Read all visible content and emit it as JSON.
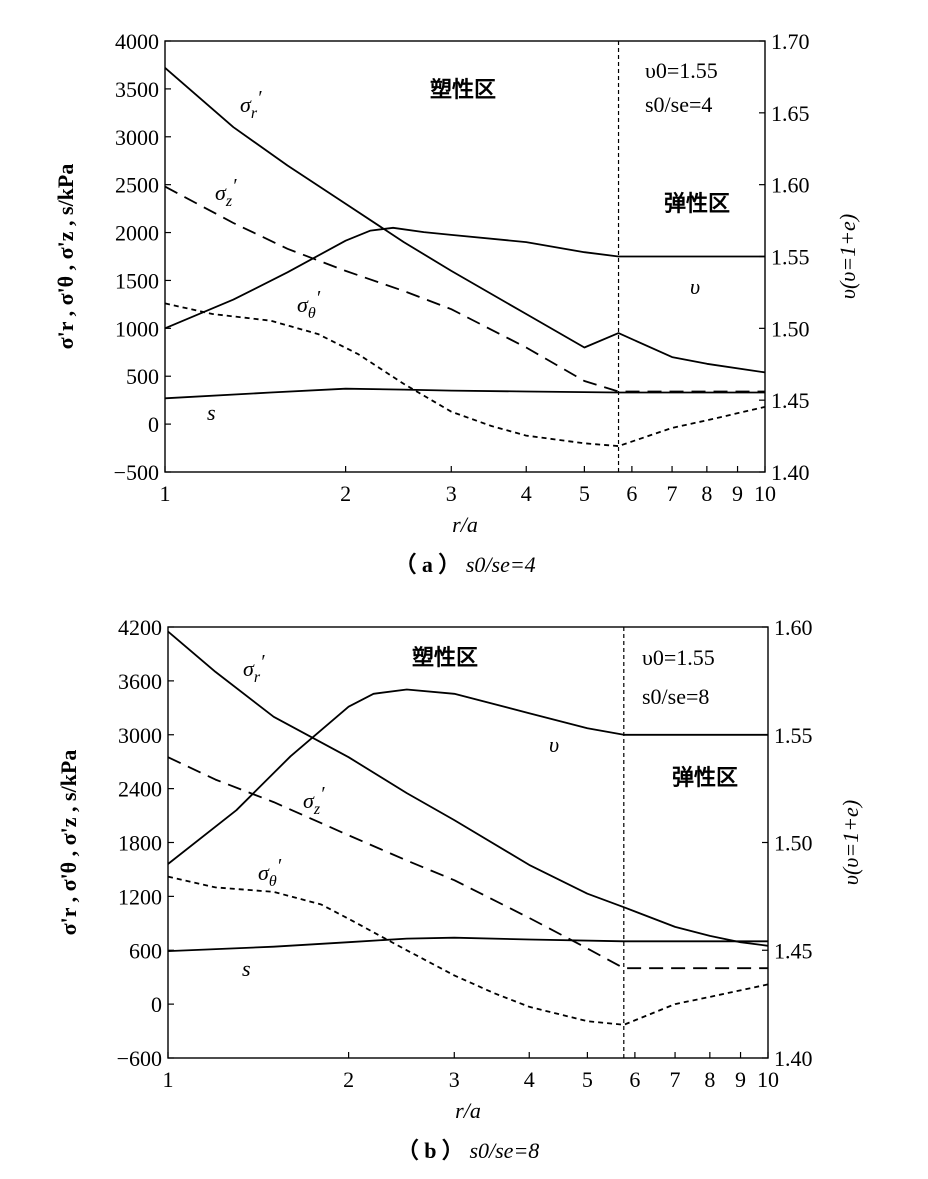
{
  "chart_data": [
    {
      "type": "line",
      "id": "a",
      "caption": {
        "prefix": "（ a ）",
        "ratio": "s0/se=4"
      },
      "xscale": "log",
      "xlim": [
        1,
        10
      ],
      "xticks": [
        "1",
        "2",
        "3",
        "4",
        "5",
        "6",
        "7",
        "8",
        "9",
        "10"
      ],
      "xlabel": "r/a",
      "ylabel_left": "σ'r , σ'θ , σ'z , s/kPa",
      "ylim_left": [
        -500,
        4000
      ],
      "yticks_left": [
        "4000",
        "3500",
        "3000",
        "2500",
        "2000",
        "1500",
        "1000",
        "500",
        "0",
        "-500"
      ],
      "ylabel_right": "υ(υ=1+e)",
      "ylim_right": [
        1.4,
        1.7
      ],
      "yticks_right": [
        "1.70",
        "1.65",
        "1.60",
        "1.55",
        "1.50",
        "1.45",
        "1.40"
      ],
      "boundary_x": 5.7,
      "zone_plastic": "塑性区",
      "zone_elastic": "弹性区",
      "note_v0": "υ0=1.55",
      "note_ratio": "s0/se=4",
      "series": [
        {
          "name": "σ'r",
          "axis": "left",
          "style": "solid",
          "x": [
            1,
            1.3,
            1.6,
            2,
            2.5,
            3,
            4,
            5,
            5.7,
            7,
            8,
            10
          ],
          "y": [
            3720,
            3100,
            2700,
            2300,
            1900,
            1600,
            1150,
            800,
            950,
            700,
            630,
            540
          ]
        },
        {
          "name": "σ'z",
          "axis": "left",
          "style": "dashed",
          "x": [
            1,
            1.3,
            1.6,
            2,
            2.5,
            3,
            4,
            5,
            5.7,
            7,
            10
          ],
          "y": [
            2480,
            2100,
            1830,
            1600,
            1390,
            1200,
            800,
            450,
            340,
            340,
            340
          ]
        },
        {
          "name": "σ'θ",
          "axis": "left",
          "style": "dotted",
          "x": [
            1,
            1.2,
            1.5,
            1.8,
            2.1,
            2.5,
            3,
            3.5,
            4,
            5,
            5.7,
            7,
            8,
            10
          ],
          "y": [
            1260,
            1150,
            1080,
            940,
            730,
            420,
            130,
            -20,
            -120,
            -200,
            -230,
            -40,
            40,
            180
          ]
        },
        {
          "name": "s",
          "axis": "left",
          "style": "solid",
          "x": [
            1,
            1.5,
            2,
            2.5,
            3,
            4,
            5.7,
            10
          ],
          "y": [
            270,
            330,
            370,
            360,
            350,
            340,
            330,
            330
          ]
        },
        {
          "name": "υ",
          "axis": "right",
          "style": "solid",
          "x": [
            1,
            1.3,
            1.6,
            2,
            2.2,
            2.4,
            2.7,
            3,
            4,
            5,
            5.7,
            7,
            10
          ],
          "y": [
            1.5,
            1.52,
            1.539,
            1.561,
            1.568,
            1.57,
            1.567,
            1.565,
            1.56,
            1.553,
            1.55,
            1.55,
            1.55
          ]
        }
      ],
      "labels": {
        "sr": "σ'r",
        "sz": "σ'z",
        "st": "σ'θ",
        "s": "s",
        "v": "υ"
      }
    },
    {
      "type": "line",
      "id": "b",
      "caption": {
        "prefix": "（ b ）",
        "ratio": "s0/se=8"
      },
      "xscale": "log",
      "xlim": [
        1,
        10
      ],
      "xticks": [
        "1",
        "2",
        "3",
        "4",
        "5",
        "6",
        "7",
        "8",
        "9",
        "10"
      ],
      "xlabel": "r/a",
      "ylabel_left": "σ'r , σ'θ , σ'z , s/kPa",
      "ylim_left": [
        -600,
        4200
      ],
      "yticks_left": [
        "4200",
        "3600",
        "3000",
        "2400",
        "1800",
        "1200",
        "600",
        "0",
        "-600"
      ],
      "ylabel_right": "υ(υ=1+e)",
      "ylim_right": [
        1.4,
        1.6
      ],
      "yticks_right": [
        "1.60",
        "1.55",
        "1.50",
        "1.45",
        "1.40"
      ],
      "boundary_x": 5.75,
      "zone_plastic": "塑性区",
      "zone_elastic": "弹性区",
      "note_v0": "υ0=1.55",
      "note_ratio": "s0/se=8",
      "series": [
        {
          "name": "σ'r",
          "axis": "left",
          "style": "solid",
          "x": [
            1,
            1.2,
            1.5,
            2,
            2.5,
            3,
            4,
            5,
            5.75,
            7,
            8,
            9,
            10
          ],
          "y": [
            4150,
            3700,
            3200,
            2750,
            2350,
            2050,
            1550,
            1230,
            1080,
            860,
            760,
            690,
            650
          ]
        },
        {
          "name": "σ'z",
          "axis": "left",
          "style": "dashed",
          "x": [
            1,
            1.2,
            1.5,
            2,
            2.5,
            3,
            4,
            5,
            5.75,
            7,
            10
          ],
          "y": [
            2750,
            2500,
            2250,
            1880,
            1600,
            1380,
            960,
            620,
            400,
            400,
            400
          ]
        },
        {
          "name": "σ'θ",
          "axis": "left",
          "style": "dotted",
          "x": [
            1,
            1.2,
            1.5,
            1.8,
            2,
            2.5,
            3,
            3.5,
            4,
            5,
            5.75,
            7,
            8,
            10
          ],
          "y": [
            1420,
            1300,
            1250,
            1110,
            950,
            600,
            320,
            120,
            -30,
            -190,
            -230,
            0,
            80,
            220
          ]
        },
        {
          "name": "s",
          "axis": "left",
          "style": "solid",
          "x": [
            1,
            1.5,
            2,
            2.5,
            3,
            4,
            5.75,
            10
          ],
          "y": [
            590,
            640,
            690,
            730,
            740,
            720,
            700,
            700
          ]
        },
        {
          "name": "υ",
          "axis": "right",
          "style": "solid",
          "x": [
            1,
            1.3,
            1.6,
            2,
            2.2,
            2.5,
            3,
            4,
            5,
            5.75,
            7,
            10
          ],
          "y": [
            1.49,
            1.515,
            1.54,
            1.563,
            1.569,
            1.571,
            1.569,
            1.56,
            1.553,
            1.55,
            1.55,
            1.55
          ]
        }
      ],
      "labels": {
        "sr": "σ'r",
        "sz": "σ'z",
        "st": "σ'θ",
        "s": "s",
        "v": "υ"
      }
    }
  ]
}
